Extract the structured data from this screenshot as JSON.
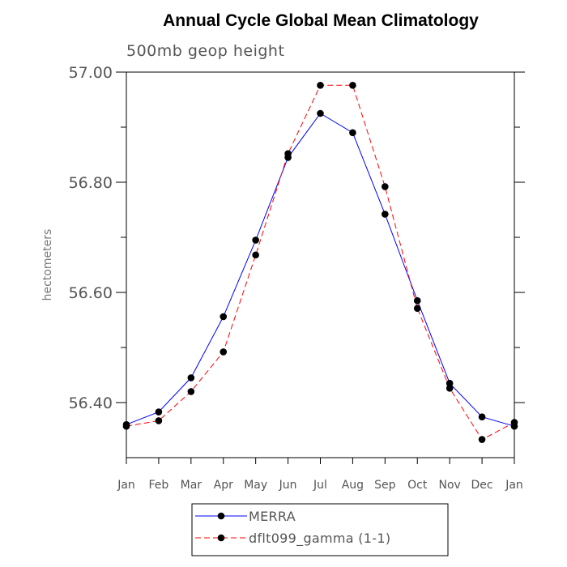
{
  "chart_data": {
    "type": "line",
    "title": "Annual Cycle Global Mean Climatology",
    "subtitle": "500mb geop height",
    "ylabel": "hectometers",
    "xlabel": "",
    "categories": [
      "Jan",
      "Feb",
      "Mar",
      "Apr",
      "May",
      "Jun",
      "Jul",
      "Aug",
      "Sep",
      "Oct",
      "Nov",
      "Dec",
      "Jan"
    ],
    "ylim": [
      56.3,
      57.0
    ],
    "yticks": [
      56.4,
      56.6,
      56.8,
      57.0
    ],
    "ytick_labels": [
      "56.40",
      "56.60",
      "56.80",
      "57.00"
    ],
    "yminor_step": 0.1,
    "grid": false,
    "legend_position": "bottom-center",
    "series": [
      {
        "name": "MERRA",
        "color": "#0000ff",
        "dash": "solid",
        "values": [
          56.36,
          56.383,
          56.445,
          56.556,
          56.695,
          56.845,
          56.925,
          56.89,
          56.742,
          56.585,
          56.435,
          56.374,
          56.357
        ]
      },
      {
        "name": "dflt099_gamma (1-1)",
        "color": "#ff0000",
        "dash": "dashed",
        "values": [
          56.357,
          56.367,
          56.42,
          56.492,
          56.668,
          56.852,
          56.976,
          56.976,
          56.792,
          56.571,
          56.426,
          56.333,
          56.364
        ]
      }
    ]
  }
}
